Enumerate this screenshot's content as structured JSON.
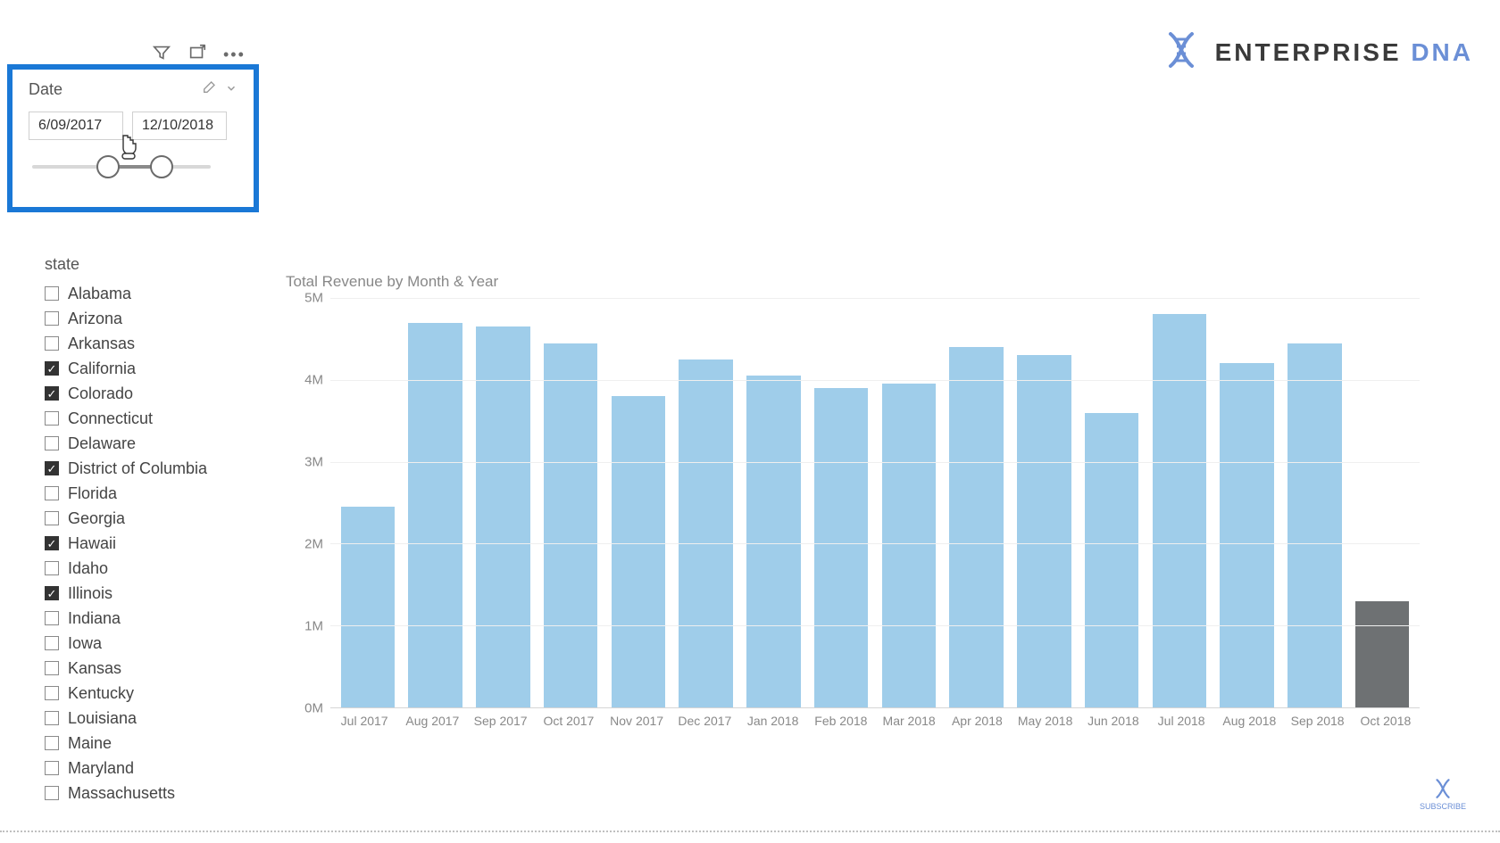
{
  "logo": {
    "brand": "ENTERPRISE ",
    "accent": "DNA"
  },
  "toolbar": {
    "filter_icon": "filter-icon",
    "focus_icon": "focus-icon",
    "more_icon": "more-options-icon"
  },
  "date_slicer": {
    "title": "Date",
    "start": "6/09/2017",
    "end": "12/10/2018",
    "slider": {
      "track_color": "#d8d8d8",
      "fill_color": "#8a8a8a",
      "handle_border": "#6b6b6b",
      "handle_fill": "#ffffff",
      "left_pct": 36,
      "right_pct": 66
    },
    "selection_border_color": "#1a78d6"
  },
  "state_filter": {
    "title": "state",
    "items": [
      {
        "label": "Alabama",
        "checked": false
      },
      {
        "label": "Arizona",
        "checked": false
      },
      {
        "label": "Arkansas",
        "checked": false
      },
      {
        "label": "California",
        "checked": true
      },
      {
        "label": "Colorado",
        "checked": true
      },
      {
        "label": "Connecticut",
        "checked": false
      },
      {
        "label": "Delaware",
        "checked": false
      },
      {
        "label": "District of Columbia",
        "checked": true
      },
      {
        "label": "Florida",
        "checked": false
      },
      {
        "label": "Georgia",
        "checked": false
      },
      {
        "label": "Hawaii",
        "checked": true
      },
      {
        "label": "Idaho",
        "checked": false
      },
      {
        "label": "Illinois",
        "checked": true
      },
      {
        "label": "Indiana",
        "checked": false
      },
      {
        "label": "Iowa",
        "checked": false
      },
      {
        "label": "Kansas",
        "checked": false
      },
      {
        "label": "Kentucky",
        "checked": false
      },
      {
        "label": "Louisiana",
        "checked": false
      },
      {
        "label": "Maine",
        "checked": false
      },
      {
        "label": "Maryland",
        "checked": false
      },
      {
        "label": "Massachusetts",
        "checked": false
      }
    ]
  },
  "chart": {
    "type": "bar",
    "title": "Total Revenue by Month & Year",
    "title_fontsize": 17,
    "title_color": "#888888",
    "ylabel": "",
    "ylim": [
      0,
      5000000
    ],
    "yticks": [
      0,
      1000000,
      2000000,
      3000000,
      4000000,
      5000000
    ],
    "ytick_labels": [
      "0M",
      "1M",
      "2M",
      "3M",
      "4M",
      "5M"
    ],
    "grid_color": "#efefef",
    "background_color": "#ffffff",
    "bar_width": 0.8,
    "default_bar_color": "#9fcdea",
    "highlight_bar_color": "#6e7173",
    "label_fontsize": 14,
    "label_color": "#888888",
    "categories": [
      "Jul 2017",
      "Aug 2017",
      "Sep 2017",
      "Oct 2017",
      "Nov 2017",
      "Dec 2017",
      "Jan 2018",
      "Feb 2018",
      "Mar 2018",
      "Apr 2018",
      "May 2018",
      "Jun 2018",
      "Jul 2018",
      "Aug 2018",
      "Sep 2018",
      "Oct 2018"
    ],
    "values": [
      2450000,
      4700000,
      4650000,
      4450000,
      3800000,
      4250000,
      4050000,
      3900000,
      3950000,
      4400000,
      4300000,
      3600000,
      4800000,
      4200000,
      4450000,
      1300000
    ],
    "bar_colors": [
      "#9fcdea",
      "#9fcdea",
      "#9fcdea",
      "#9fcdea",
      "#9fcdea",
      "#9fcdea",
      "#9fcdea",
      "#9fcdea",
      "#9fcdea",
      "#9fcdea",
      "#9fcdea",
      "#9fcdea",
      "#9fcdea",
      "#9fcdea",
      "#9fcdea",
      "#6e7173"
    ]
  },
  "subscribe": {
    "label": "SUBSCRIBE"
  }
}
